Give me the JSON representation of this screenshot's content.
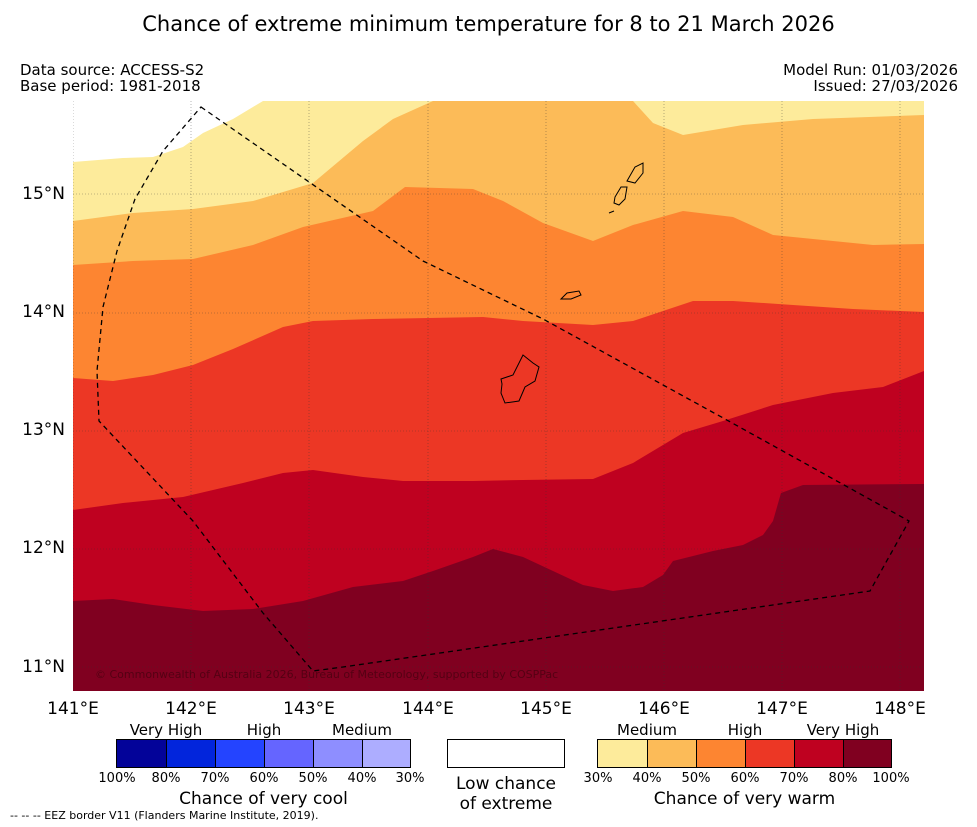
{
  "title": "Chance of extreme minimum temperature for 8 to 21 March 2026",
  "meta": {
    "data_source": "Data source: ACCESS-S2",
    "base_period": "Base period: 1981-2018",
    "model_run": "Model Run: 01/03/2026",
    "issued": "Issued: 27/03/2026"
  },
  "map": {
    "lat_labels": [
      "15°N",
      "14°N",
      "13°N",
      "12°N",
      "11°N"
    ],
    "lon_labels": [
      "141°E",
      "142°E",
      "143°E",
      "144°E",
      "145°E",
      "146°E",
      "147°E",
      "148°E"
    ],
    "copyright": "© Commonwealth of Australia 2026, Bureau of Meteorology, supported by COSPPac",
    "band_colors": [
      "#fdeb9b",
      "#fcbb58",
      "#fd8531",
      "#ec3725",
      "#bf0120",
      "#800020"
    ]
  },
  "legend_cool": {
    "categories": [
      "Very High",
      "High",
      "Medium"
    ],
    "ticks": [
      "100%",
      "80%",
      "70%",
      "60%",
      "50%",
      "40%",
      "30%"
    ],
    "colors": [
      "#030399",
      "#0225dc",
      "#2444ff",
      "#6565ff",
      "#8e8eff",
      "#adadff"
    ],
    "caption": "Chance of very cool"
  },
  "legend_neutral": {
    "caption_line1": "Low chance",
    "caption_line2": "of extreme"
  },
  "legend_warm": {
    "categories": [
      "Medium",
      "High",
      "Very High"
    ],
    "ticks": [
      "30%",
      "40%",
      "50%",
      "60%",
      "70%",
      "80%",
      "100%"
    ],
    "colors": [
      "#fdeb9b",
      "#fcbb58",
      "#fd8531",
      "#ec3725",
      "#bf0120",
      "#800020"
    ],
    "caption": "Chance of very warm"
  },
  "footer": "-- -- -- EEZ border V11 (Flanders Marine Institute, 2019)."
}
